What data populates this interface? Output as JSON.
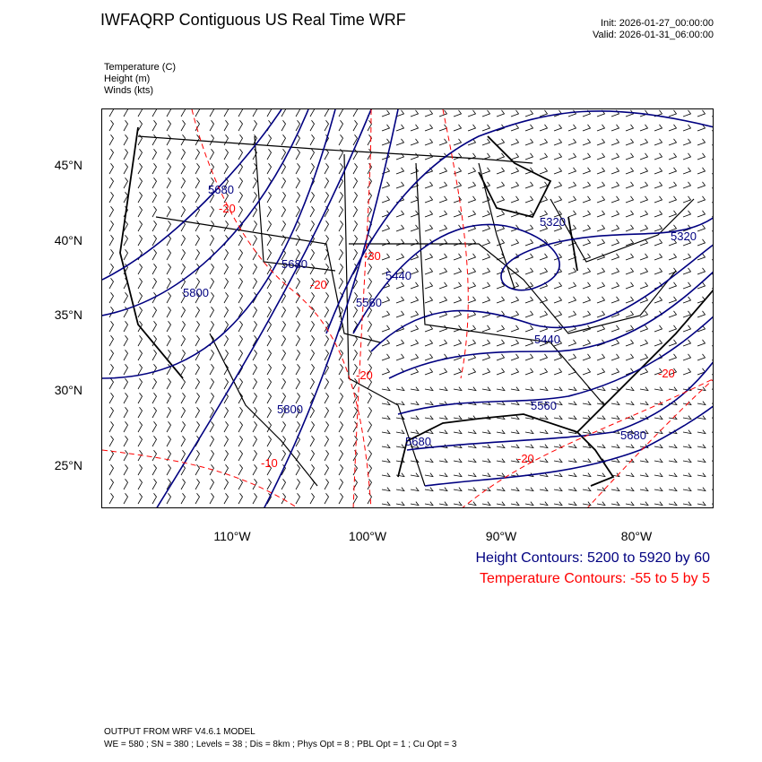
{
  "header": {
    "title": "IWFAQRP Contiguous US Real Time WRF",
    "init": "Init: 2026-01-27_00:00:00",
    "valid": "Valid: 2026-01-31_06:00:00"
  },
  "fields": [
    "Temperature   (C)",
    "Height   (m)",
    "Winds   (kts)"
  ],
  "axes": {
    "lat_labels": [
      "45°N",
      "40°N",
      "35°N",
      "30°N",
      "25°N"
    ],
    "lon_labels": [
      "110°W",
      "100°W",
      "90°W",
      "80°W"
    ]
  },
  "contour_labels": {
    "height": [
      "5680",
      "5680",
      "5800",
      "5440",
      "5560",
      "5320",
      "5320",
      "5440",
      "5560",
      "5800",
      "5680",
      "5680"
    ],
    "temperature": [
      "-20",
      "-30",
      "-20",
      "-20",
      "-10",
      "-20",
      "-20"
    ]
  },
  "legend": {
    "height": "Height Contours: 5200 to 5920 by 60",
    "temperature": "Temperature Contours: -55 to 5 by 5"
  },
  "colors": {
    "height": "#000080",
    "temperature": "#ff0000",
    "borders": "#000000"
  },
  "footer": {
    "line1": "OUTPUT FROM WRF V4.6.1 MODEL",
    "line2": "WE = 580 ; SN = 380 ; Levels = 38 ; Dis = 8km ; Phys Opt = 8 ; PBL Opt = 1 ; Cu Opt = 3"
  }
}
